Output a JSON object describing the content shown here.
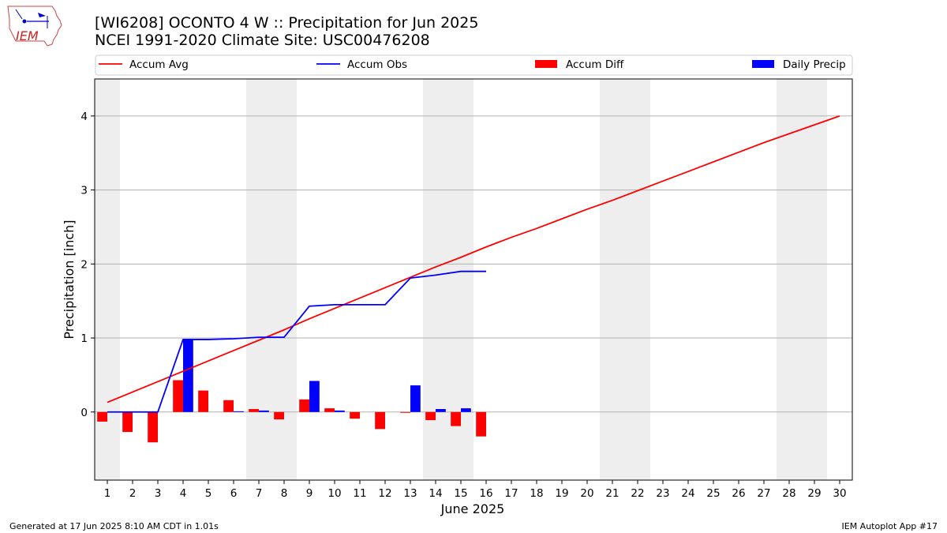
{
  "header": {
    "title_line1": "[WI6208] OCONTO 4 W :: Precipitation for Jun 2025",
    "title_line2": "NCEI 1991-2020 Climate Site: USC00476208",
    "logo_text": "IEM"
  },
  "footer": {
    "left": "Generated at 17 Jun 2025 8:10 AM CDT in 1.01s",
    "right": "IEM Autoplot App #17"
  },
  "legend": {
    "accum_avg": "Accum Avg",
    "accum_obs": "Accum Obs",
    "accum_diff": "Accum Diff",
    "daily_precip": "Daily Precip"
  },
  "chart_data": {
    "type": "bar",
    "xlabel": "June 2025",
    "ylabel": "Precipitation [inch]",
    "xlim": [
      0.5,
      30.5
    ],
    "ylim": [
      -0.92,
      4.5
    ],
    "y_ticks": [
      0,
      1,
      2,
      3,
      4
    ],
    "x_ticks": [
      1,
      2,
      3,
      4,
      5,
      6,
      7,
      8,
      9,
      10,
      11,
      12,
      13,
      14,
      15,
      16,
      17,
      18,
      19,
      20,
      21,
      22,
      23,
      24,
      25,
      26,
      27,
      28,
      29,
      30
    ],
    "grid": "horizontal",
    "legend_position": "top",
    "weekend_bands": [
      [
        0.5,
        1.5
      ],
      [
        6.5,
        8.5
      ],
      [
        13.5,
        15.5
      ],
      [
        20.5,
        22.5
      ],
      [
        27.5,
        29.5
      ]
    ],
    "colors": {
      "accum_avg": "#ff0000",
      "accum_obs": "#0000ff",
      "accum_diff": "#ff0000",
      "daily_precip": "#0000ff",
      "weekend": "#eeeeee",
      "grid": "#b0b0b0"
    },
    "series": [
      {
        "name": "Accum Avg",
        "kind": "line",
        "x": [
          1,
          2,
          3,
          4,
          5,
          6,
          7,
          8,
          9,
          10,
          11,
          12,
          13,
          14,
          15,
          16,
          17,
          18,
          19,
          20,
          21,
          22,
          23,
          24,
          25,
          26,
          27,
          28,
          29,
          30
        ],
        "values": [
          0.13,
          0.27,
          0.41,
          0.55,
          0.69,
          0.83,
          0.97,
          1.11,
          1.26,
          1.4,
          1.54,
          1.68,
          1.82,
          1.96,
          2.09,
          2.23,
          2.36,
          2.48,
          2.61,
          2.74,
          2.86,
          2.99,
          3.12,
          3.25,
          3.38,
          3.51,
          3.64,
          3.76,
          3.88,
          4.0
        ]
      },
      {
        "name": "Accum Obs",
        "kind": "line",
        "x": [
          1,
          2,
          3,
          4,
          5,
          6,
          7,
          8,
          9,
          10,
          11,
          12,
          13,
          14,
          15,
          16
        ],
        "values": [
          0.0,
          0.0,
          0.0,
          0.98,
          0.98,
          0.99,
          1.01,
          1.01,
          1.43,
          1.45,
          1.45,
          1.45,
          1.81,
          1.85,
          1.9,
          1.9
        ]
      },
      {
        "name": "Accum Diff",
        "kind": "bar",
        "x": [
          1,
          2,
          3,
          4,
          5,
          6,
          7,
          8,
          9,
          10,
          11,
          12,
          13,
          14,
          15,
          16
        ],
        "values": [
          -0.13,
          -0.27,
          -0.41,
          0.43,
          0.29,
          0.16,
          0.04,
          -0.1,
          0.17,
          0.05,
          -0.09,
          -0.23,
          -0.01,
          -0.11,
          -0.19,
          -0.33
        ]
      },
      {
        "name": "Daily Precip",
        "kind": "bar",
        "x": [
          1,
          2,
          3,
          4,
          5,
          6,
          7,
          8,
          9,
          10,
          11,
          12,
          13,
          14,
          15,
          16
        ],
        "values": [
          0.0,
          0.0,
          0.0,
          0.98,
          0.0,
          0.01,
          0.02,
          0.0,
          0.42,
          0.02,
          0.0,
          0.0,
          0.36,
          0.04,
          0.05,
          0.0
        ]
      }
    ]
  }
}
